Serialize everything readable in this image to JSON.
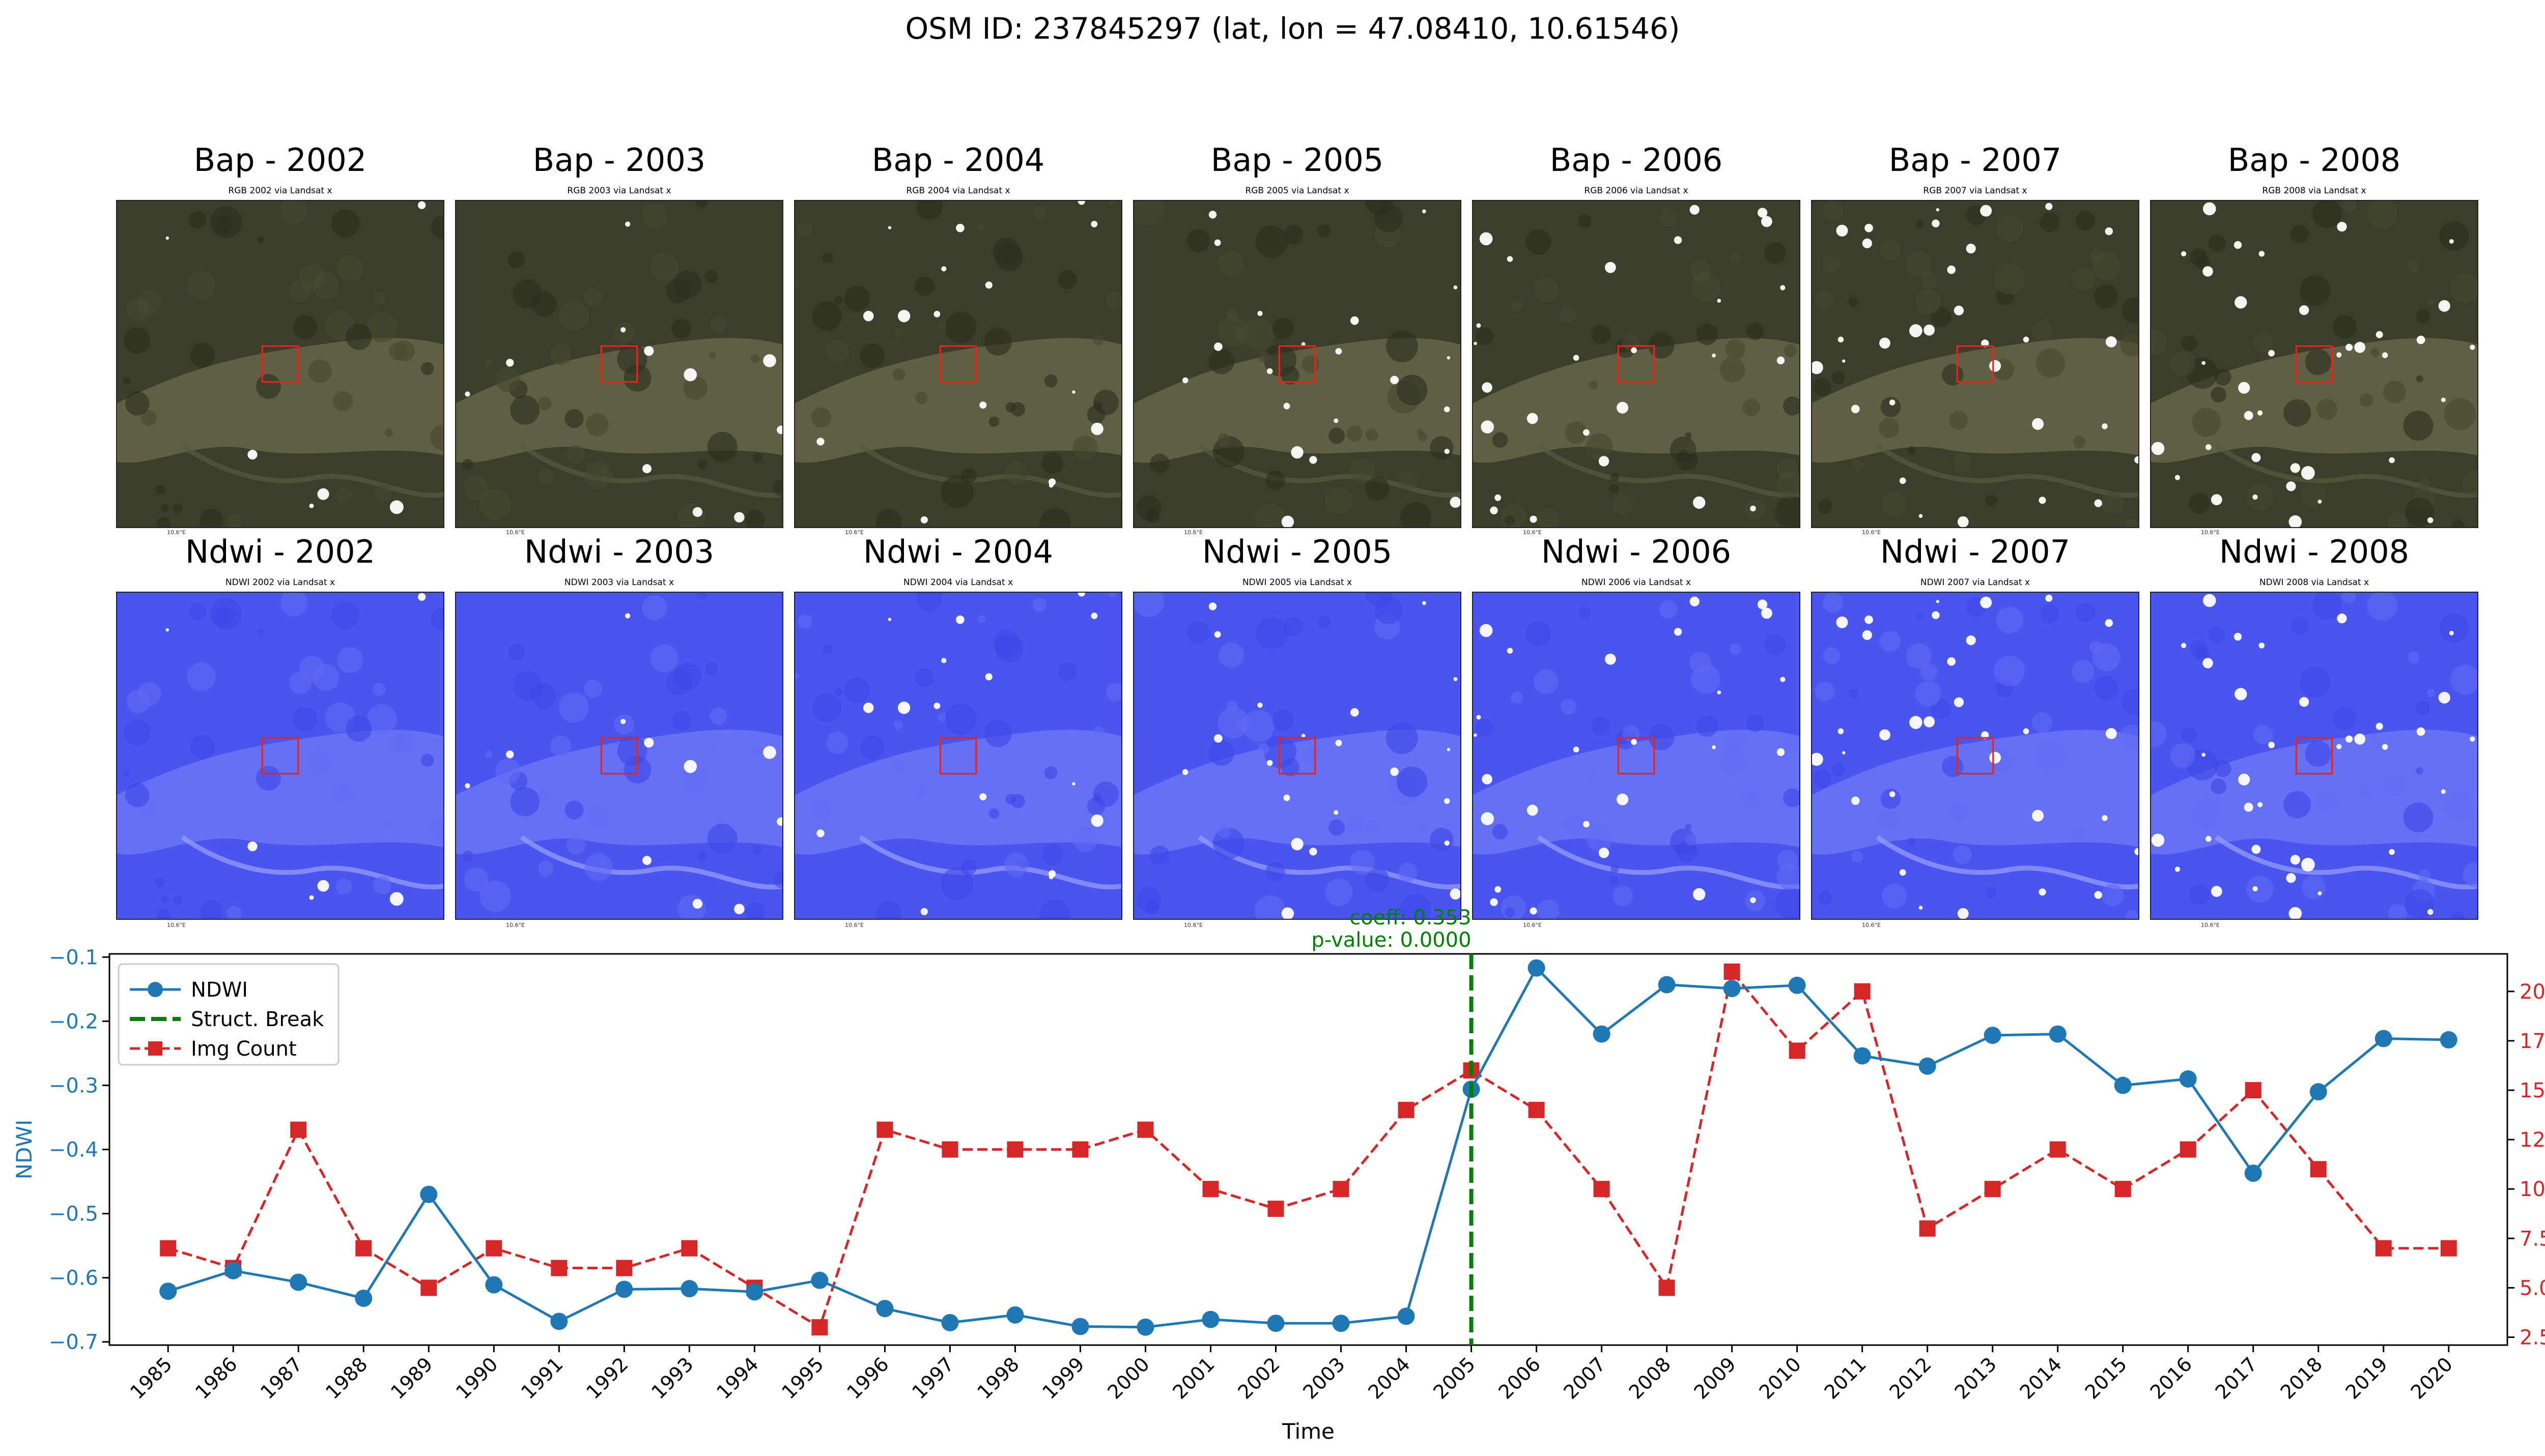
{
  "suptitle": "OSM ID: 237845297 (lat, lon = 47.08410, 10.61546)",
  "panels": {
    "bap": [
      {
        "title": "Bap - 2002",
        "sub": "RGB 2002 via Landsat x",
        "tick": "10.6°E"
      },
      {
        "title": "Bap - 2003",
        "sub": "RGB 2003 via Landsat x",
        "tick": "10.6°E"
      },
      {
        "title": "Bap - 2004",
        "sub": "RGB 2004 via Landsat x",
        "tick": "10.6°E"
      },
      {
        "title": "Bap - 2005",
        "sub": "RGB 2005 via Landsat x",
        "tick": "10.6°E"
      },
      {
        "title": "Bap - 2006",
        "sub": "RGB 2006 via Landsat x",
        "tick": "10.6°E"
      },
      {
        "title": "Bap - 2007",
        "sub": "RGB 2007 via Landsat x",
        "tick": "10.6°E"
      },
      {
        "title": "Bap - 2008",
        "sub": "RGB 2008 via Landsat x",
        "tick": "10.6°E"
      }
    ],
    "ndwi": [
      {
        "title": "Ndwi - 2002",
        "sub": "NDWI 2002 via Landsat x",
        "tick": "10.6°E"
      },
      {
        "title": "Ndwi - 2003",
        "sub": "NDWI 2003 via Landsat x",
        "tick": "10.6°E"
      },
      {
        "title": "Ndwi - 2004",
        "sub": "NDWI 2004 via Landsat x",
        "tick": "10.6°E"
      },
      {
        "title": "Ndwi - 2005",
        "sub": "NDWI 2005 via Landsat x",
        "tick": "10.6°E"
      },
      {
        "title": "Ndwi - 2006",
        "sub": "NDWI 2006 via Landsat x",
        "tick": "10.6°E"
      },
      {
        "title": "Ndwi - 2007",
        "sub": "NDWI 2007 via Landsat x",
        "tick": "10.6°E"
      },
      {
        "title": "Ndwi - 2008",
        "sub": "NDWI 2008 via Landsat x",
        "tick": "10.6°E"
      }
    ]
  },
  "colors": {
    "ndwi": "#1f77b4",
    "img_count": "#d62728",
    "break": "#007f00",
    "bap_ground": "#3b3e2a",
    "ndwi_ground": "#4a55f0",
    "aoi_box": "#e0281e"
  },
  "chart_data": {
    "type": "line",
    "x": [
      1985,
      1986,
      1987,
      1988,
      1989,
      1990,
      1991,
      1992,
      1993,
      1994,
      1995,
      1996,
      1997,
      1998,
      1999,
      2000,
      2001,
      2002,
      2003,
      2004,
      2005,
      2006,
      2007,
      2008,
      2009,
      2010,
      2011,
      2012,
      2013,
      2014,
      2015,
      2016,
      2017,
      2018,
      2019,
      2020
    ],
    "xlabel": "Time",
    "ylabel_left": "NDWI",
    "ylabel_right": "Img Count",
    "ylim_left": [
      -0.705,
      -0.095
    ],
    "ylim_right": [
      2.1,
      21.9
    ],
    "yticks_left": [
      "-0.1",
      "-0.2",
      "-0.3",
      "-0.4",
      "-0.5",
      "-0.6",
      "-0.7"
    ],
    "yticks_right": [
      "2.5",
      "5.0",
      "7.5",
      "10.0",
      "12.5",
      "15.0",
      "17.5",
      "20.0"
    ],
    "series": [
      {
        "name": "NDWI",
        "axis": "left",
        "style": "solid",
        "marker": "circle",
        "values": [
          -0.621,
          -0.589,
          -0.607,
          -0.632,
          -0.47,
          -0.611,
          -0.668,
          -0.618,
          -0.617,
          -0.622,
          -0.604,
          -0.648,
          -0.67,
          -0.658,
          -0.676,
          -0.677,
          -0.665,
          -0.671,
          -0.671,
          -0.66,
          -0.306,
          -0.117,
          -0.22,
          -0.143,
          -0.149,
          -0.144,
          -0.254,
          -0.27,
          -0.222,
          -0.22,
          -0.3,
          -0.29,
          -0.437,
          -0.31,
          -0.227,
          -0.229
        ]
      },
      {
        "name": "Img Count",
        "axis": "right",
        "style": "dashed",
        "marker": "square",
        "values": [
          7,
          6,
          13,
          7,
          5,
          7,
          6,
          6,
          7,
          5,
          3,
          13,
          12,
          12,
          12,
          13,
          10,
          9,
          10,
          14,
          16,
          14,
          10,
          5,
          21,
          17,
          20,
          8,
          10,
          12,
          10,
          12,
          15,
          11,
          7,
          7
        ]
      }
    ],
    "break": {
      "x": 2005,
      "label": "Struct. Break",
      "coeff_text": "coeff: 0.353",
      "pvalue_text": "p-value: 0.0000"
    },
    "legend": {
      "placement": "upper-left",
      "entries": [
        "NDWI",
        "Struct. Break",
        "Img Count"
      ]
    }
  }
}
